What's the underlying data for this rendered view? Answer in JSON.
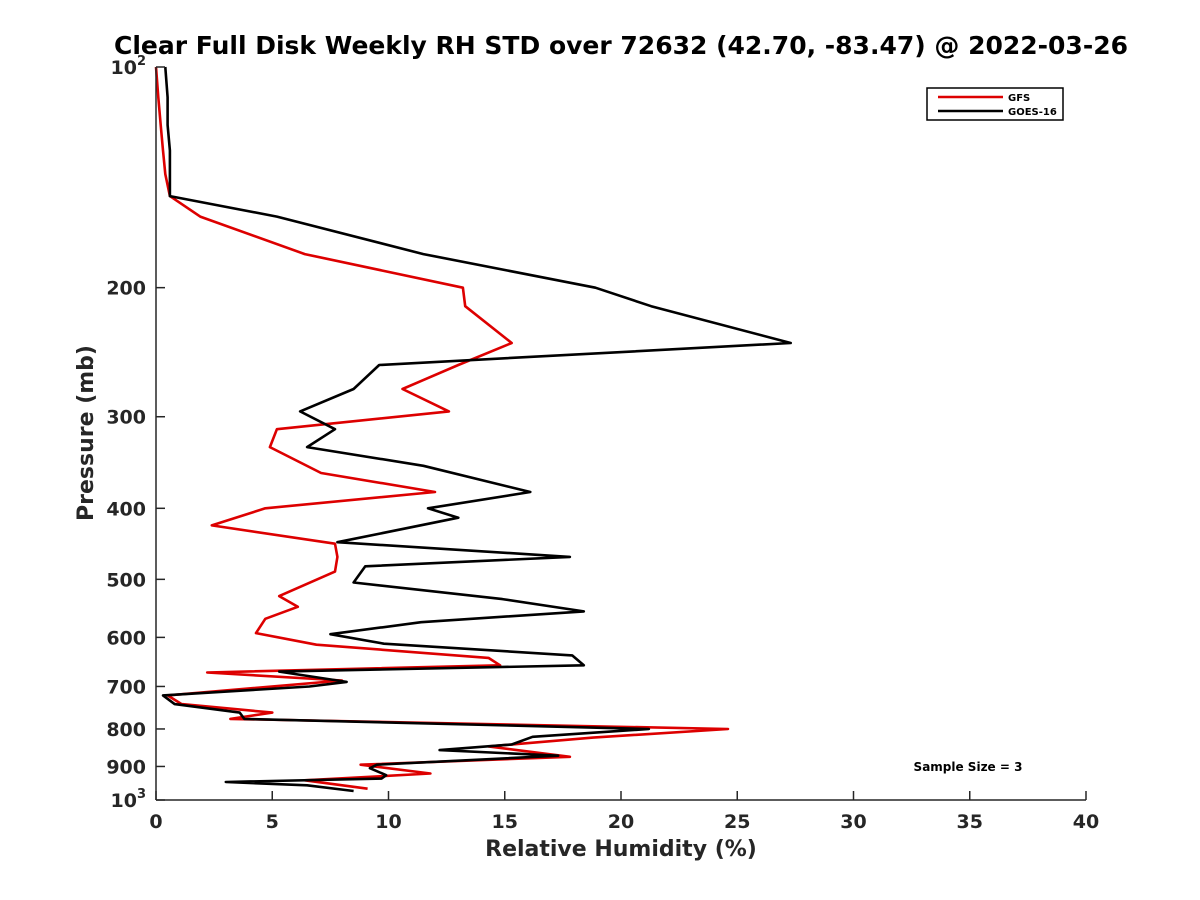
{
  "chart_data": {
    "type": "line",
    "orientation": "profile",
    "title": "Clear Full Disk Weekly RH STD over 72632 (42.70, -83.47) @ 2022-03-26",
    "xlabel": "Relative Humidity (%)",
    "ylabel": "Pressure (mb)",
    "xlim": [
      0,
      40
    ],
    "ylim": [
      100,
      1000
    ],
    "yscale": "log",
    "y_reversed": true,
    "xticks": [
      0,
      5,
      10,
      15,
      20,
      25,
      30,
      35,
      40
    ],
    "xtick_labels": [
      "0",
      "5",
      "10",
      "15",
      "20",
      "25",
      "30",
      "35",
      "40"
    ],
    "yticks": [
      100,
      200,
      300,
      400,
      500,
      600,
      700,
      800,
      900,
      1000
    ],
    "ytick_labels": [
      {
        "base": "10",
        "sup": "2"
      },
      {
        "base": "200"
      },
      {
        "base": "300"
      },
      {
        "base": "400"
      },
      {
        "base": "500"
      },
      {
        "base": "600"
      },
      {
        "base": "700"
      },
      {
        "base": "800"
      },
      {
        "base": "900"
      },
      {
        "base": "10",
        "sup": "3"
      }
    ],
    "grid": false,
    "legend_position": "top-right",
    "annotation": "Sample Size = 3",
    "series": [
      {
        "name": "GFS",
        "color": "#dd0000",
        "points": [
          [
            0.0,
            100
          ],
          [
            0.1,
            110
          ],
          [
            0.2,
            120
          ],
          [
            0.3,
            130
          ],
          [
            0.4,
            140
          ],
          [
            0.6,
            150
          ],
          [
            1.9,
            160
          ],
          [
            6.4,
            180
          ],
          [
            13.2,
            200
          ],
          [
            13.3,
            212
          ],
          [
            15.3,
            238
          ],
          [
            13.0,
            255
          ],
          [
            10.6,
            275
          ],
          [
            12.6,
            295
          ],
          [
            5.2,
            312
          ],
          [
            4.9,
            330
          ],
          [
            7.1,
            358
          ],
          [
            12.0,
            380
          ],
          [
            4.7,
            400
          ],
          [
            2.4,
            422
          ],
          [
            7.7,
            447
          ],
          [
            7.8,
            466
          ],
          [
            7.7,
            488
          ],
          [
            5.3,
            527
          ],
          [
            6.1,
            545
          ],
          [
            4.7,
            566
          ],
          [
            4.3,
            592
          ],
          [
            6.9,
            614
          ],
          [
            14.3,
            640
          ],
          [
            14.8,
            655
          ],
          [
            2.2,
            670
          ],
          [
            8.0,
            687
          ],
          [
            0.5,
            720
          ],
          [
            1.1,
            740
          ],
          [
            5.0,
            760
          ],
          [
            3.2,
            775
          ],
          [
            24.6,
            800
          ],
          [
            18.8,
            822
          ],
          [
            14.3,
            845
          ],
          [
            17.8,
            873
          ],
          [
            8.8,
            895
          ],
          [
            11.8,
            920
          ],
          [
            6.4,
            940
          ],
          [
            9.1,
            965
          ]
        ]
      },
      {
        "name": "GOES-16",
        "color": "#000000",
        "points": [
          [
            0.4,
            100
          ],
          [
            0.5,
            110
          ],
          [
            0.5,
            120
          ],
          [
            0.6,
            130
          ],
          [
            0.6,
            140
          ],
          [
            0.6,
            150
          ],
          [
            5.2,
            160
          ],
          [
            11.5,
            180
          ],
          [
            18.9,
            200
          ],
          [
            21.3,
            212
          ],
          [
            27.3,
            238
          ],
          [
            9.6,
            255
          ],
          [
            8.5,
            275
          ],
          [
            6.2,
            295
          ],
          [
            7.7,
            312
          ],
          [
            6.5,
            330
          ],
          [
            11.5,
            350
          ],
          [
            16.1,
            380
          ],
          [
            11.7,
            400
          ],
          [
            13.0,
            412
          ],
          [
            7.8,
            445
          ],
          [
            17.8,
            466
          ],
          [
            9.0,
            480
          ],
          [
            8.5,
            505
          ],
          [
            14.9,
            532
          ],
          [
            18.4,
            553
          ],
          [
            11.4,
            572
          ],
          [
            7.5,
            594
          ],
          [
            9.8,
            612
          ],
          [
            17.9,
            635
          ],
          [
            18.4,
            655
          ],
          [
            5.3,
            668
          ],
          [
            8.2,
            690
          ],
          [
            6.6,
            700
          ],
          [
            0.3,
            720
          ],
          [
            0.8,
            740
          ],
          [
            3.6,
            760
          ],
          [
            3.8,
            775
          ],
          [
            21.2,
            800
          ],
          [
            16.2,
            820
          ],
          [
            15.3,
            840
          ],
          [
            12.2,
            855
          ],
          [
            17.3,
            870
          ],
          [
            9.5,
            895
          ],
          [
            9.2,
            905
          ],
          [
            9.9,
            925
          ],
          [
            9.7,
            935
          ],
          [
            3.0,
            945
          ],
          [
            6.5,
            955
          ],
          [
            8.5,
            972
          ]
        ]
      }
    ]
  }
}
